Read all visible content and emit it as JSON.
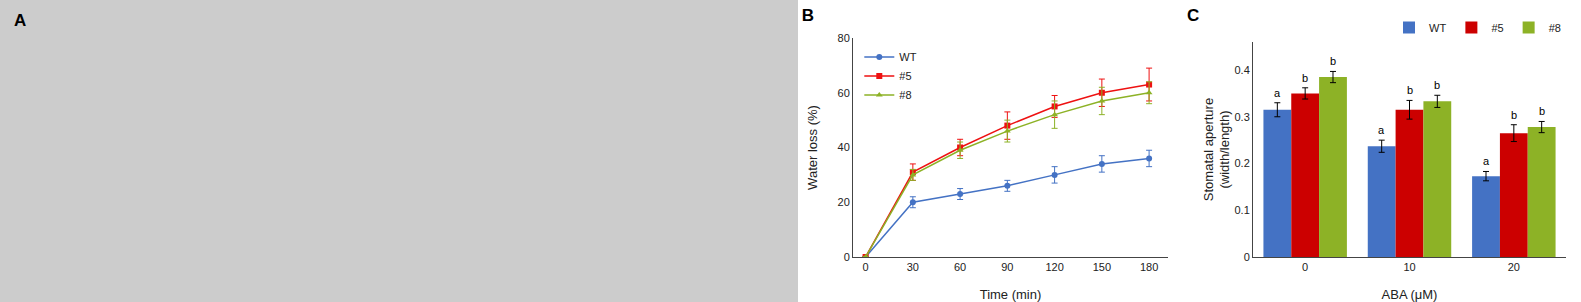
{
  "chart_data": [
    {
      "type": "image",
      "title": "A"
    },
    {
      "type": "line",
      "title": "B",
      "xlabel": "Time (min)",
      "ylabel": "Water loss (%)",
      "x": [
        0,
        30,
        60,
        90,
        120,
        150,
        180
      ],
      "xlim": [
        -8,
        192
      ],
      "ylim": [
        0,
        80
      ],
      "xticks": [
        0,
        30,
        60,
        90,
        120,
        150,
        180
      ],
      "yticks": [
        0,
        20,
        40,
        60,
        80
      ],
      "legend": "upper left",
      "series": [
        {
          "name": "WT",
          "color": "#4472C4",
          "marker": "circle",
          "values": [
            0,
            20,
            23,
            26,
            30,
            34,
            36
          ],
          "yerr": [
            0.2,
            2,
            2,
            2,
            3,
            3,
            3
          ]
        },
        {
          "name": "#5",
          "color": "#EE1111",
          "marker": "square",
          "values": [
            0,
            31,
            40,
            48,
            55,
            60,
            63
          ],
          "yerr": [
            0.2,
            3,
            3,
            5,
            4,
            5,
            6
          ]
        },
        {
          "name": "#8",
          "color": "#8DB226",
          "marker": "triangle-up",
          "values": [
            0,
            30,
            39,
            46,
            52,
            57,
            60
          ],
          "yerr": [
            0.2,
            2,
            3,
            4,
            5,
            5,
            4
          ]
        }
      ]
    },
    {
      "type": "bar",
      "title": "C",
      "xlabel": "ABA (μM)",
      "ylabel": "Stomatal aperture\n(width/length)",
      "categories": [
        "0",
        "10",
        "20"
      ],
      "ylim": [
        0,
        0.46
      ],
      "yticks": [
        0,
        0.1,
        0.2,
        0.3,
        0.4
      ],
      "legend": "upper right",
      "series": [
        {
          "name": "WT",
          "color": "#4472C4",
          "values": [
            0.315,
            0.237,
            0.173
          ],
          "yerr": [
            0.015,
            0.013,
            0.01
          ],
          "annotations": [
            "a",
            "a",
            "a"
          ]
        },
        {
          "name": "#5",
          "color": "#CC0000",
          "values": [
            0.35,
            0.315,
            0.265
          ],
          "yerr": [
            0.012,
            0.02,
            0.018
          ],
          "annotations": [
            "b",
            "b",
            "b"
          ]
        },
        {
          "name": "#8",
          "color": "#8DB226",
          "values": [
            0.385,
            0.333,
            0.278
          ],
          "yerr": [
            0.012,
            0.013,
            0.012
          ],
          "annotations": [
            "b",
            "b",
            "b"
          ]
        }
      ]
    }
  ]
}
